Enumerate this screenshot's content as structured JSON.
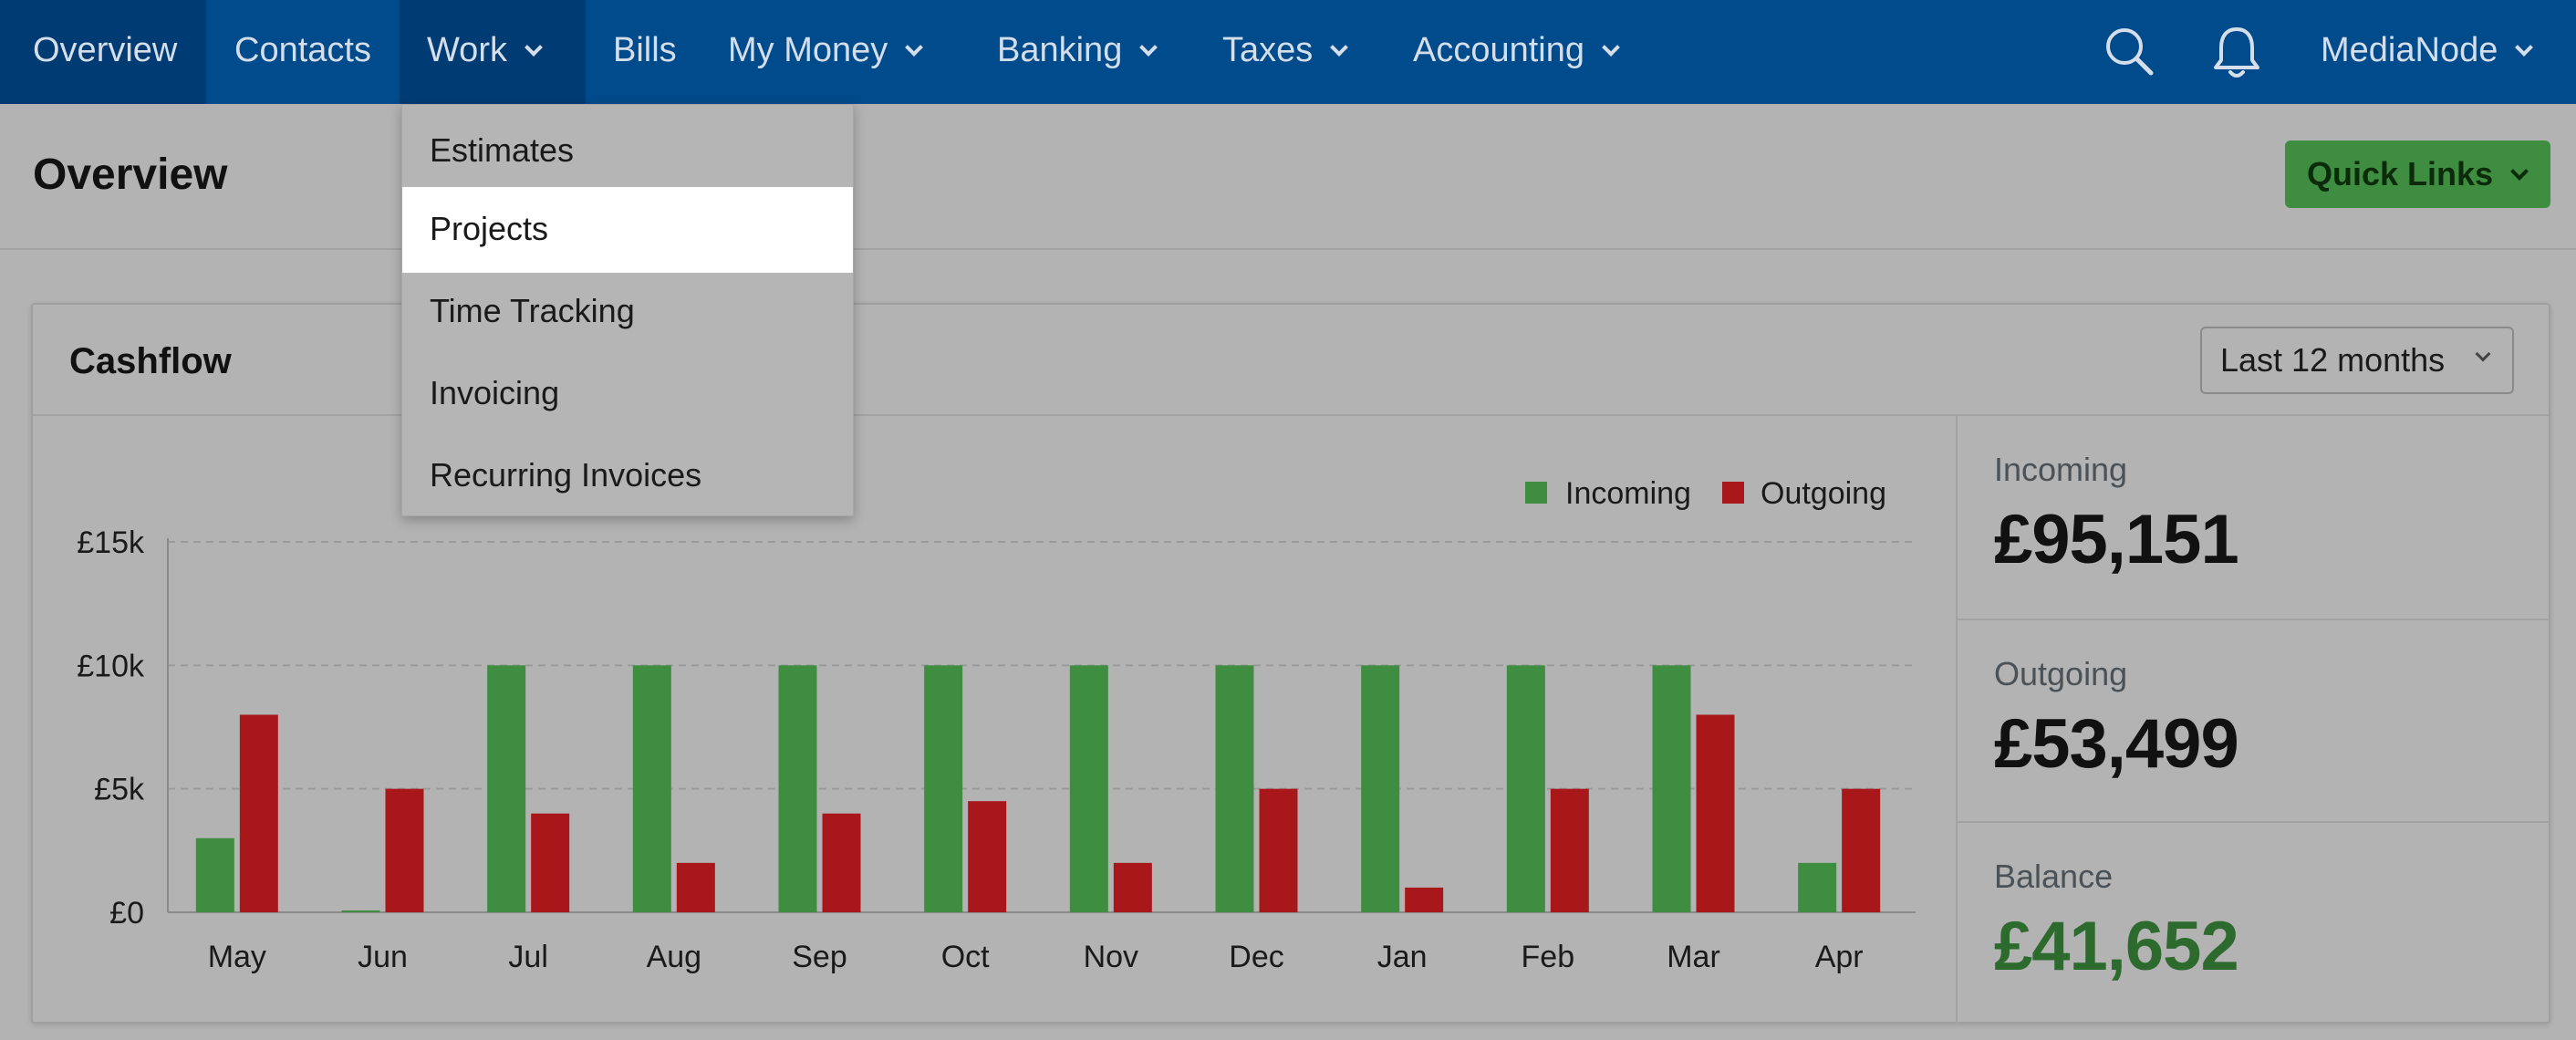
{
  "nav": {
    "items": [
      {
        "label": "Overview"
      },
      {
        "label": "Contacts"
      },
      {
        "label": "Work"
      },
      {
        "label": "Bills"
      },
      {
        "label": "My Money"
      },
      {
        "label": "Banking"
      },
      {
        "label": "Taxes"
      },
      {
        "label": "Accounting"
      }
    ],
    "account": "MediaNode"
  },
  "work_menu": {
    "items": [
      {
        "label": "Estimates"
      },
      {
        "label": "Projects"
      },
      {
        "label": "Time Tracking"
      },
      {
        "label": "Invoicing"
      },
      {
        "label": "Recurring Invoices"
      }
    ]
  },
  "header": {
    "title": "Overview",
    "quick_links": "Quick Links"
  },
  "cashflow": {
    "title": "Cashflow",
    "period": "Last 12 months",
    "stats": [
      {
        "label": "Incoming",
        "value": "£95,151"
      },
      {
        "label": "Outgoing",
        "value": "£53,499"
      },
      {
        "label": "Balance",
        "value": "£41,652"
      }
    ]
  },
  "colors": {
    "incoming": "#3e8d40",
    "outgoing": "#a8181b",
    "nav_bg": "#004b8c",
    "balance": "#2d6a2e"
  },
  "chart_data": {
    "type": "bar",
    "categories": [
      "May",
      "Jun",
      "Jul",
      "Aug",
      "Sep",
      "Oct",
      "Nov",
      "Dec",
      "Jan",
      "Feb",
      "Mar",
      "Apr"
    ],
    "series": [
      {
        "name": "Incoming",
        "values": [
          3000,
          0,
          10000,
          10000,
          10000,
          10000,
          10000,
          10000,
          10000,
          10000,
          10000,
          2000
        ]
      },
      {
        "name": "Outgoing",
        "values": [
          8000,
          5000,
          4000,
          2000,
          4000,
          4500,
          2000,
          5000,
          1000,
          5000,
          8000,
          5000
        ]
      }
    ],
    "yticks": [
      "£0",
      "£5k",
      "£10k",
      "£15k"
    ],
    "ylim": [
      0,
      15000
    ],
    "legend": "top-right",
    "grid": true
  }
}
